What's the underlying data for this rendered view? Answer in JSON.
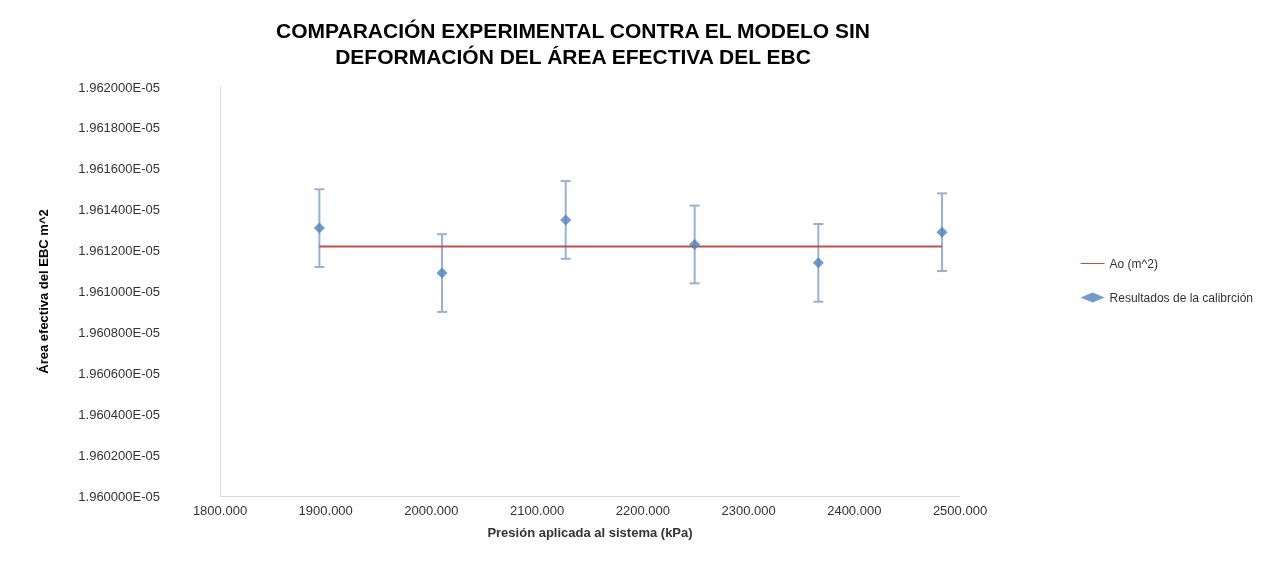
{
  "chart_data": {
    "type": "scatter",
    "title": "COMPARACIÓN EXPERIMENTAL CONTRA EL MODELO SIN\nDEFORMACIÓN DEL ÁREA EFECTIVA DEL EBC",
    "xlabel": "Presión aplicada al sistema (kPa)",
    "ylabel": "Área efectiva del EBC m^2",
    "series": [
      {
        "name": "Ao (m^2)",
        "type": "line",
        "marker": "none",
        "color": "#c0504d",
        "x": [
          1894,
          2483
        ],
        "values": [
          1.96122e-05,
          1.96122e-05
        ]
      },
      {
        "name": "Resultados de la calibrción",
        "marker": "diamond",
        "color": "#4f81bd",
        "x": [
          1894,
          2010,
          2127,
          2249,
          2366,
          2483
        ],
        "values": [
          1.96131e-05,
          1.96109e-05,
          1.96135e-05,
          1.96123e-05,
          1.96114e-05,
          1.96129e-05
        ],
        "errors": [
          1.9e-09,
          1.9e-09,
          1.9e-09,
          1.9e-09,
          1.9e-09,
          1.9e-09
        ]
      }
    ],
    "xlim": [
      1800,
      2500
    ],
    "xticks": [
      {
        "value": 1800,
        "label": "1800.000"
      },
      {
        "value": 1900,
        "label": "1900.000"
      },
      {
        "value": 2000,
        "label": "2000.000"
      },
      {
        "value": 2100,
        "label": "2100.000"
      },
      {
        "value": 2200,
        "label": "2200.000"
      },
      {
        "value": 2300,
        "label": "2300.000"
      },
      {
        "value": 2400,
        "label": "2400.000"
      },
      {
        "value": 2500,
        "label": "2500.000"
      }
    ],
    "ylim": [
      1.96e-05,
      1.962e-05
    ],
    "yticks": [
      {
        "value": 1.96e-05,
        "label": "1.960000E-05"
      },
      {
        "value": 1.9602e-05,
        "label": "1.960200E-05"
      },
      {
        "value": 1.9604e-05,
        "label": "1.960400E-05"
      },
      {
        "value": 1.9606e-05,
        "label": "1.960600E-05"
      },
      {
        "value": 1.9608e-05,
        "label": "1.960800E-05"
      },
      {
        "value": 1.961e-05,
        "label": "1.961000E-05"
      },
      {
        "value": 1.9612e-05,
        "label": "1.961200E-05"
      },
      {
        "value": 1.9614e-05,
        "label": "1.961400E-05"
      },
      {
        "value": 1.9616e-05,
        "label": "1.961600E-05"
      },
      {
        "value": 1.9618e-05,
        "label": "1.961800E-05"
      },
      {
        "value": 1.962e-05,
        "label": "1.962000E-05"
      }
    ],
    "grid": false,
    "legend": "right"
  }
}
